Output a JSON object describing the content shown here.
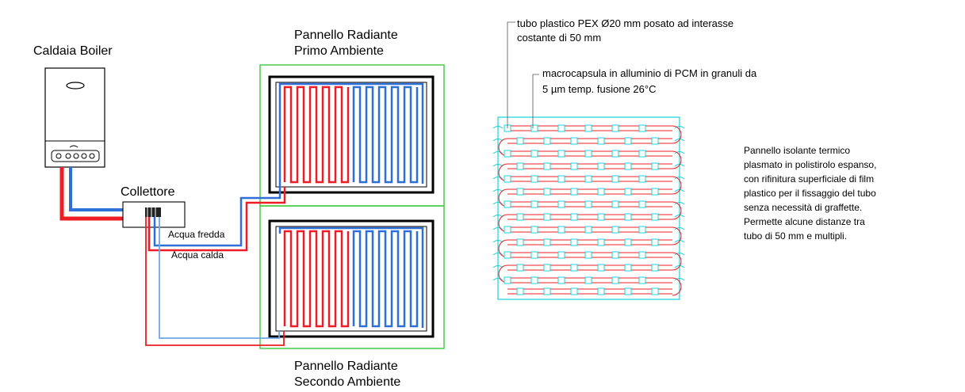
{
  "boiler": {
    "label": "Caldaia Boiler"
  },
  "manifold": {
    "label": "Collettore"
  },
  "pipes": {
    "cold_label": "Acqua fredda",
    "hot_label": "Acqua calda"
  },
  "panels": {
    "first": {
      "title_line1": "Pannello Radiante",
      "title_line2": "Primo Ambiente"
    },
    "second": {
      "title_line1": "Pannello Radiante",
      "title_line2": "Secondo Ambiente"
    }
  },
  "detail": {
    "pex_line1": "tubo plastico PEX Ø20 mm posato ad interasse",
    "pex_line2": "costante di 50 mm",
    "pcm_line1": "macrocapsula in alluminio di PCM in granuli da",
    "pcm_line2": "5 µm temp. fusione 26°C",
    "panel_note": [
      "Pannello isolante termico",
      "plasmato in polistirolo espanso,",
      "con rifinitura superficiale di film",
      "plastico per il fissaggio del tubo",
      "senza necessità di graffette.",
      "Permette alcune distanze tra",
      "tubo di 50 mm e multipli."
    ]
  },
  "colors": {
    "hot": "#ee1c24",
    "cold": "#2e6fd8",
    "cold_light": "#6fa8e8",
    "frame": "#39c939",
    "detail": "#19d3dc"
  }
}
